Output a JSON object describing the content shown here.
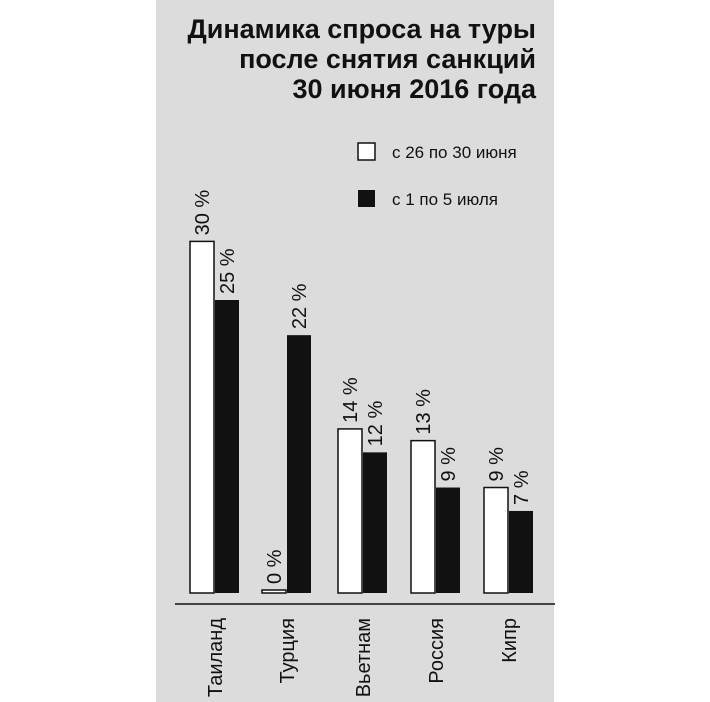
{
  "chart_data": {
    "type": "bar",
    "title": [
      "Динамика спроса на туры",
      "после снятия санкций",
      "30 июня 2016 года"
    ],
    "categories": [
      "Таиланд",
      "Турция",
      "Вьетнам",
      "Россия",
      "Кипр"
    ],
    "series": [
      {
        "name": "с 26 по 30 июня",
        "values": [
          30,
          0,
          14,
          13,
          9
        ],
        "labels": [
          "30 %",
          "0 %",
          "14 %",
          "13 %",
          "9 %"
        ],
        "color": "#ffffff"
      },
      {
        "name": "с 1 по 5 июля",
        "values": [
          25,
          22,
          12,
          9,
          7
        ],
        "labels": [
          "25 %",
          "22 %",
          "12 %",
          "9 %",
          "7 %"
        ],
        "color": "#111111"
      }
    ],
    "ylim": [
      0,
      30
    ],
    "grid": false,
    "legend_position": "top-right"
  },
  "colors": {
    "panel_background": "#dcdcdc",
    "bar_outline": "#111111"
  }
}
